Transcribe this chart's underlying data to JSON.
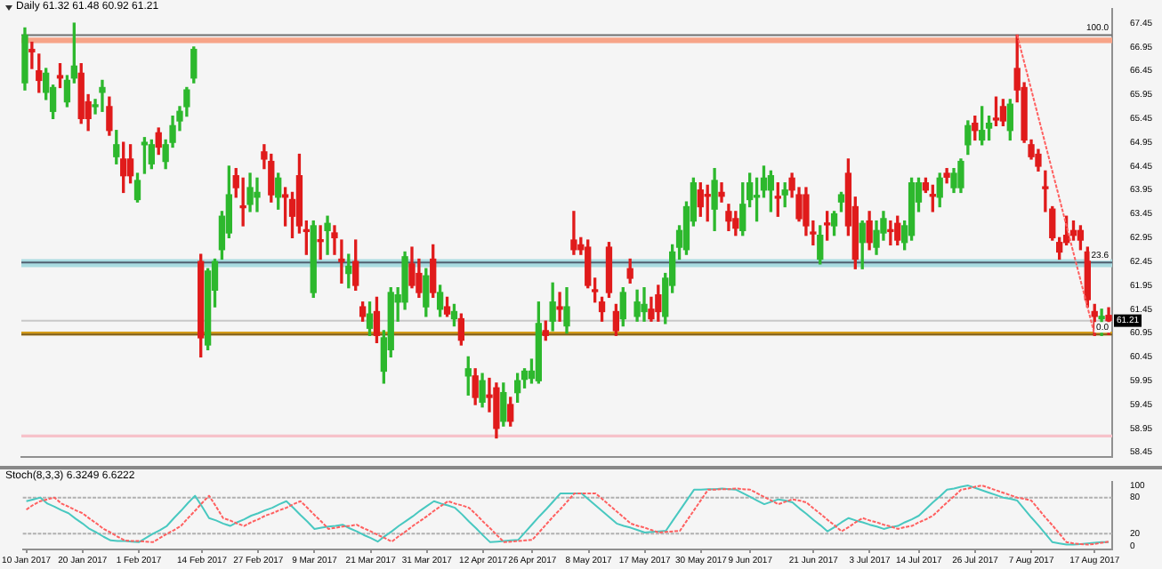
{
  "chart_data": [
    {
      "type": "candlestick",
      "title": "Daily 61.32 61.48 60.92 61.21",
      "ohlc": [
        [
          66.2,
          67.35,
          66.05,
          67.2
        ],
        [
          66.9,
          67.05,
          66.5,
          66.85
        ],
        [
          66.45,
          66.8,
          66.0,
          66.25
        ],
        [
          66.0,
          66.5,
          65.85,
          66.4
        ],
        [
          65.6,
          66.15,
          65.45,
          66.1
        ],
        [
          66.35,
          66.6,
          66.1,
          66.3
        ],
        [
          65.8,
          66.35,
          65.7,
          66.25
        ],
        [
          66.3,
          67.45,
          66.2,
          66.55
        ],
        [
          66.4,
          66.6,
          65.35,
          65.45
        ],
        [
          65.8,
          65.95,
          65.2,
          65.45
        ],
        [
          65.7,
          65.85,
          65.55,
          65.72
        ],
        [
          66.0,
          66.25,
          65.6,
          66.1
        ],
        [
          65.7,
          65.9,
          65.1,
          65.2
        ],
        [
          64.65,
          65.2,
          64.5,
          64.9
        ],
        [
          64.6,
          64.95,
          63.9,
          64.25
        ],
        [
          64.6,
          64.9,
          64.1,
          64.25
        ],
        [
          63.75,
          64.3,
          63.7,
          64.15
        ],
        [
          64.9,
          65.05,
          64.3,
          64.95
        ],
        [
          64.5,
          65.0,
          64.4,
          64.9
        ],
        [
          65.15,
          65.25,
          64.7,
          64.85
        ],
        [
          64.55,
          65.0,
          64.4,
          64.9
        ],
        [
          64.95,
          65.5,
          64.85,
          65.3
        ],
        [
          65.4,
          65.7,
          65.2,
          65.6
        ],
        [
          65.7,
          66.1,
          65.5,
          66.05
        ],
        [
          66.3,
          66.95,
          66.2,
          66.9
        ],
        [
          62.45,
          62.6,
          60.45,
          60.85
        ],
        [
          60.7,
          62.3,
          60.6,
          62.25
        ],
        [
          61.85,
          62.5,
          61.5,
          62.45
        ],
        [
          62.7,
          63.5,
          62.5,
          63.4
        ],
        [
          63.05,
          64.45,
          62.95,
          63.85
        ],
        [
          64.25,
          64.4,
          63.8,
          64.0
        ],
        [
          63.6,
          64.2,
          63.2,
          63.58
        ],
        [
          63.65,
          64.3,
          63.5,
          64.0
        ],
        [
          63.8,
          64.2,
          63.5,
          63.9
        ],
        [
          64.75,
          64.9,
          64.4,
          64.6
        ],
        [
          64.55,
          64.7,
          63.7,
          63.85
        ],
        [
          63.8,
          64.3,
          63.55,
          64.2
        ],
        [
          63.85,
          64.0,
          63.2,
          63.8
        ],
        [
          63.75,
          63.9,
          62.95,
          63.4
        ],
        [
          64.25,
          64.7,
          63.05,
          63.2
        ],
        [
          63.1,
          63.3,
          62.6,
          63.08
        ],
        [
          61.8,
          63.3,
          61.7,
          63.2
        ],
        [
          62.9,
          63.2,
          62.5,
          62.87
        ],
        [
          63.1,
          63.4,
          62.6,
          63.25
        ],
        [
          63.05,
          63.2,
          62.6,
          62.95
        ],
        [
          62.5,
          62.9,
          62.0,
          62.45
        ],
        [
          62.2,
          62.6,
          61.9,
          62.35
        ],
        [
          62.45,
          62.9,
          61.85,
          61.95
        ],
        [
          61.5,
          61.6,
          61.2,
          61.3
        ],
        [
          61.05,
          61.6,
          60.9,
          61.35
        ],
        [
          61.4,
          61.7,
          60.75,
          60.9
        ],
        [
          60.15,
          61.0,
          59.9,
          60.85
        ],
        [
          60.6,
          61.9,
          60.45,
          61.8
        ],
        [
          61.6,
          61.9,
          61.2,
          61.75
        ],
        [
          61.6,
          62.65,
          61.45,
          62.55
        ],
        [
          62.4,
          62.75,
          61.9,
          61.95
        ],
        [
          62.2,
          62.5,
          61.7,
          61.8
        ],
        [
          61.5,
          62.3,
          61.3,
          62.15
        ],
        [
          62.5,
          62.8,
          61.7,
          61.8
        ],
        [
          61.45,
          61.95,
          61.3,
          61.8
        ],
        [
          61.5,
          61.7,
          61.3,
          61.35
        ],
        [
          61.25,
          61.55,
          61.1,
          61.4
        ],
        [
          61.25,
          61.35,
          60.7,
          60.8
        ],
        [
          60.05,
          60.45,
          59.65,
          60.2
        ],
        [
          60.05,
          60.2,
          59.45,
          59.6
        ],
        [
          59.5,
          60.1,
          59.4,
          59.95
        ],
        [
          59.65,
          60.0,
          59.3,
          59.6
        ],
        [
          59.8,
          59.9,
          58.75,
          58.95
        ],
        [
          59.1,
          59.9,
          59.0,
          59.7
        ],
        [
          59.45,
          59.6,
          59.0,
          59.1
        ],
        [
          59.7,
          60.1,
          59.5,
          59.95
        ],
        [
          59.98,
          60.2,
          59.8,
          60.15
        ],
        [
          60.0,
          60.4,
          59.9,
          60.15
        ],
        [
          59.95,
          61.6,
          59.9,
          61.15
        ],
        [
          61.0,
          61.2,
          60.8,
          60.9
        ],
        [
          61.2,
          62.0,
          61.0,
          61.6
        ],
        [
          61.5,
          61.8,
          61.2,
          61.45
        ],
        [
          61.1,
          61.9,
          60.95,
          61.5
        ],
        [
          62.9,
          63.5,
          62.6,
          62.7
        ],
        [
          62.8,
          62.95,
          62.6,
          62.7
        ],
        [
          62.75,
          62.9,
          61.9,
          61.95
        ],
        [
          61.85,
          62.1,
          61.6,
          61.82
        ],
        [
          61.6,
          61.7,
          61.2,
          61.4
        ],
        [
          62.75,
          62.85,
          61.7,
          61.8
        ],
        [
          61.4,
          61.55,
          60.9,
          61.0
        ],
        [
          61.25,
          61.9,
          61.1,
          61.8
        ],
        [
          62.3,
          62.5,
          62.0,
          62.1
        ],
        [
          61.3,
          61.85,
          61.2,
          61.6
        ],
        [
          61.4,
          61.9,
          61.2,
          61.55
        ],
        [
          61.45,
          61.7,
          61.2,
          61.25
        ],
        [
          61.75,
          61.95,
          61.2,
          61.4
        ],
        [
          61.3,
          62.2,
          61.15,
          62.1
        ],
        [
          61.95,
          62.8,
          61.8,
          62.65
        ],
        [
          62.75,
          63.2,
          62.5,
          63.1
        ],
        [
          62.7,
          63.7,
          62.6,
          63.6
        ],
        [
          63.3,
          64.2,
          63.2,
          64.1
        ],
        [
          63.95,
          64.1,
          63.4,
          63.6
        ],
        [
          63.85,
          64.05,
          63.3,
          63.82
        ],
        [
          63.55,
          64.4,
          63.1,
          64.15
        ],
        [
          63.9,
          64.1,
          63.7,
          63.82
        ],
        [
          63.5,
          63.65,
          63.1,
          63.3
        ],
        [
          63.35,
          63.5,
          63.0,
          63.15
        ],
        [
          63.1,
          64.1,
          63.0,
          63.65
        ],
        [
          63.75,
          64.3,
          63.6,
          64.1
        ],
        [
          63.8,
          64.2,
          63.3,
          63.82
        ],
        [
          63.95,
          64.45,
          63.8,
          64.2
        ],
        [
          63.95,
          64.35,
          63.5,
          64.25
        ],
        [
          63.8,
          64.1,
          63.4,
          63.78
        ],
        [
          63.85,
          64.1,
          63.6,
          63.95
        ],
        [
          64.2,
          64.3,
          63.8,
          63.95
        ],
        [
          63.85,
          64.0,
          63.3,
          63.35
        ],
        [
          63.85,
          64.0,
          63.0,
          63.2
        ],
        [
          63.05,
          63.3,
          62.8,
          63.03
        ],
        [
          62.5,
          63.2,
          62.4,
          63.0
        ],
        [
          63.25,
          63.5,
          62.9,
          63.22
        ],
        [
          63.2,
          63.5,
          63.0,
          63.45
        ],
        [
          63.7,
          63.9,
          63.5,
          63.85
        ],
        [
          64.3,
          64.6,
          63.0,
          63.2
        ],
        [
          63.6,
          63.8,
          62.3,
          62.5
        ],
        [
          62.85,
          63.3,
          62.3,
          63.25
        ],
        [
          63.3,
          63.5,
          62.7,
          62.85
        ],
        [
          62.75,
          63.3,
          62.6,
          63.1
        ],
        [
          63.05,
          63.5,
          62.9,
          63.35
        ],
        [
          63.1,
          63.3,
          62.8,
          63.08
        ],
        [
          63.25,
          63.4,
          62.8,
          62.9
        ],
        [
          62.85,
          63.3,
          62.7,
          63.2
        ],
        [
          63.0,
          64.2,
          62.9,
          64.1
        ],
        [
          63.7,
          64.2,
          63.5,
          64.1
        ],
        [
          64.1,
          64.2,
          63.9,
          63.95
        ],
        [
          63.85,
          64.05,
          63.5,
          63.82
        ],
        [
          63.8,
          64.3,
          63.6,
          64.2
        ],
        [
          64.3,
          64.4,
          64.1,
          64.22
        ],
        [
          64.0,
          64.4,
          63.9,
          64.3
        ],
        [
          64.0,
          64.6,
          63.9,
          64.55
        ],
        [
          64.9,
          65.4,
          64.7,
          65.3
        ],
        [
          65.35,
          65.5,
          65.0,
          65.2
        ],
        [
          65.0,
          65.7,
          64.9,
          65.2
        ],
        [
          65.25,
          65.5,
          65.0,
          65.35
        ],
        [
          65.45,
          65.9,
          65.3,
          65.42
        ],
        [
          65.7,
          65.85,
          65.3,
          65.4
        ],
        [
          65.2,
          65.85,
          65.0,
          65.75
        ],
        [
          66.5,
          67.2,
          65.8,
          66.05
        ],
        [
          66.1,
          66.2,
          64.95,
          65.0
        ],
        [
          64.9,
          65.0,
          64.6,
          64.65
        ],
        [
          64.7,
          64.8,
          64.35,
          64.45
        ],
        [
          64.0,
          64.35,
          63.5,
          63.98
        ],
        [
          63.55,
          63.6,
          62.9,
          62.95
        ],
        [
          62.85,
          62.95,
          62.5,
          62.65
        ],
        [
          63.0,
          63.4,
          62.8,
          62.85
        ],
        [
          63.1,
          63.3,
          62.9,
          63.0
        ],
        [
          63.1,
          63.2,
          62.7,
          62.9
        ],
        [
          62.65,
          62.75,
          61.5,
          61.65
        ],
        [
          61.4,
          61.55,
          60.9,
          61.3
        ],
        [
          61.25,
          61.45,
          60.9,
          61.3
        ],
        [
          61.32,
          61.48,
          60.92,
          61.21
        ]
      ],
      "colors": [
        "#2db82d",
        "#e01b1b",
        "#e01b1b",
        "#2db82d",
        "#2db82d",
        "#e01b1b",
        "#2db82d",
        "#2db82d",
        "#e01b1b",
        "#e01b1b",
        "#2db82d",
        "#2db82d",
        "#e01b1b",
        "#2db82d",
        "#e01b1b",
        "#e01b1b",
        "#2db82d",
        "#2db82d",
        "#2db82d",
        "#e01b1b",
        "#2db82d",
        "#2db82d",
        "#2db82d",
        "#2db82d",
        "#2db82d",
        "#e01b1b",
        "#2db82d",
        "#2db82d",
        "#2db82d",
        "#2db82d",
        "#e01b1b",
        "#e01b1b",
        "#2db82d",
        "#2db82d",
        "#e01b1b",
        "#e01b1b",
        "#2db82d",
        "#e01b1b",
        "#e01b1b",
        "#e01b1b",
        "#e01b1b",
        "#2db82d",
        "#e01b1b",
        "#2db82d",
        "#e01b1b",
        "#e01b1b",
        "#2db82d",
        "#e01b1b",
        "#e01b1b",
        "#2db82d",
        "#e01b1b",
        "#2db82d",
        "#2db82d",
        "#2db82d",
        "#2db82d",
        "#e01b1b",
        "#e01b1b",
        "#2db82d",
        "#e01b1b",
        "#2db82d",
        "#e01b1b",
        "#2db82d",
        "#e01b1b",
        "#2db82d",
        "#e01b1b",
        "#2db82d",
        "#e01b1b",
        "#e01b1b",
        "#2db82d",
        "#e01b1b",
        "#2db82d",
        "#2db82d",
        "#2db82d",
        "#2db82d",
        "#e01b1b",
        "#2db82d",
        "#e01b1b",
        "#2db82d",
        "#e01b1b",
        "#e01b1b",
        "#e01b1b",
        "#e01b1b",
        "#e01b1b",
        "#e01b1b",
        "#e01b1b",
        "#2db82d",
        "#e01b1b",
        "#2db82d",
        "#2db82d",
        "#e01b1b",
        "#e01b1b",
        "#2db82d",
        "#2db82d",
        "#2db82d",
        "#2db82d",
        "#2db82d",
        "#e01b1b",
        "#e01b1b",
        "#2db82d",
        "#e01b1b",
        "#e01b1b",
        "#e01b1b",
        "#2db82d",
        "#2db82d",
        "#2db82d",
        "#2db82d",
        "#2db82d",
        "#e01b1b",
        "#2db82d",
        "#e01b1b",
        "#e01b1b",
        "#e01b1b",
        "#e01b1b",
        "#2db82d",
        "#e01b1b",
        "#2db82d",
        "#2db82d",
        "#e01b1b",
        "#e01b1b",
        "#2db82d",
        "#e01b1b",
        "#2db82d",
        "#2db82d",
        "#e01b1b",
        "#e01b1b",
        "#2db82d",
        "#2db82d",
        "#2db82d",
        "#e01b1b",
        "#e01b1b",
        "#2db82d",
        "#e01b1b",
        "#2db82d",
        "#2db82d",
        "#2db82d",
        "#e01b1b",
        "#2db82d",
        "#2db82d",
        "#e01b1b",
        "#e01b1b",
        "#2db82d",
        "#e01b1b",
        "#e01b1b",
        "#e01b1b",
        "#e01b1b",
        "#e01b1b",
        "#e01b1b",
        "#e01b1b",
        "#e01b1b",
        "#e01b1b",
        "#e01b1b",
        "#e01b1b",
        "#e01b1b",
        "#2db82d",
        "#e01b1b"
      ],
      "series": [
        {
          "type": "line",
          "color": "#ff6060",
          "line_style": "dotted",
          "values": [
            null,
            null,
            null,
            null,
            null,
            null,
            null,
            null,
            null,
            null,
            null,
            null,
            null,
            null,
            null,
            null,
            null,
            null,
            null,
            null,
            null,
            null,
            null,
            null,
            null,
            null,
            null,
            null,
            null,
            null,
            null,
            null,
            null,
            null,
            null,
            null,
            null,
            null,
            null,
            null,
            null,
            null,
            null,
            null,
            null,
            null,
            null,
            null,
            null,
            null,
            null,
            null,
            null,
            null,
            null,
            null,
            null,
            null,
            null,
            null,
            null,
            null,
            null,
            null,
            null,
            null,
            null,
            null,
            null,
            null,
            null,
            null,
            null,
            null,
            null,
            null,
            null,
            null,
            null,
            null,
            null,
            null,
            null,
            null,
            null,
            null,
            null,
            null,
            null,
            null,
            null,
            null,
            null,
            null,
            null,
            null,
            null,
            null,
            null,
            null,
            null,
            null,
            null,
            null,
            null,
            null,
            null,
            null,
            null,
            null,
            null,
            null,
            null,
            null,
            null,
            null,
            null,
            null,
            null,
            null,
            null,
            null,
            null,
            null,
            null,
            null,
            null,
            null,
            null,
            null,
            null,
            null,
            null,
            null,
            null,
            null,
            null,
            null,
            null,
            null,
            null,
            67.2,
            null,
            null,
            null,
            null,
            null,
            null,
            null,
            null,
            null,
            null,
            60.92,
            null,
            null
          ]
        }
      ],
      "bands": [
        {
          "axis": "y",
          "from": 67.03,
          "to": 67.15,
          "color": "#f7a488"
        },
        {
          "axis": "y",
          "from": 62.33,
          "to": 62.5,
          "color": "#a9dbe0"
        },
        {
          "axis": "y",
          "from": 60.9,
          "to": 60.98,
          "color": "#d49b1a"
        },
        {
          "axis": "y",
          "from": 58.76,
          "to": 58.82,
          "color": "#f7c2ca"
        }
      ],
      "ref_lines": [
        {
          "axis": "y",
          "value": 67.2,
          "color": "#707070"
        },
        {
          "axis": "y",
          "value": 62.43,
          "color": "#506070"
        },
        {
          "axis": "y",
          "value": 60.92,
          "color": "#806020"
        },
        {
          "axis": "y",
          "value": 61.21,
          "label": "61.21",
          "color": "#c8c8c8"
        }
      ],
      "annotations": [
        {
          "text": "100.0",
          "y": 67.2
        },
        {
          "text": "23.6",
          "y": 62.43
        },
        {
          "text": "0.0",
          "y": 60.92
        }
      ],
      "ylim": [
        58.35,
        67.75
      ],
      "yticks": [
        58.45,
        58.95,
        59.45,
        59.95,
        60.45,
        60.95,
        61.45,
        61.95,
        62.45,
        62.95,
        63.45,
        63.95,
        64.45,
        64.95,
        65.45,
        65.95,
        66.45,
        66.95,
        67.45
      ],
      "tick_labels": "y"
    },
    {
      "type": "line",
      "title": "Stoch(8,3,3) 6.3249 6.6222",
      "categories": [
        "10 Jan 2017",
        null,
        null,
        null,
        null,
        null,
        null,
        null,
        "20 Jan 2017",
        null,
        null,
        null,
        null,
        null,
        null,
        null,
        "1 Feb 2017",
        null,
        null,
        null,
        null,
        null,
        null,
        null,
        null,
        "14 Feb 2017",
        null,
        null,
        null,
        null,
        null,
        null,
        null,
        "27 Feb 2017",
        null,
        null,
        null,
        null,
        null,
        null,
        null,
        "9 Mar 2017",
        null,
        null,
        null,
        null,
        null,
        null,
        null,
        "21 Mar 2017",
        null,
        null,
        null,
        null,
        null,
        null,
        null,
        "31 Mar 2017",
        null,
        null,
        null,
        null,
        null,
        null,
        null,
        "12 Apr 2017",
        null,
        null,
        null,
        null,
        null,
        null,
        "26 Apr 2017",
        null,
        null,
        null,
        null,
        null,
        null,
        null,
        "8 May 2017",
        null,
        null,
        null,
        null,
        null,
        null,
        null,
        "17 May 2017",
        null,
        null,
        null,
        null,
        null,
        null,
        null,
        "30 May 2017",
        null,
        null,
        null,
        null,
        null,
        null,
        "9 Jun 2017",
        null,
        null,
        null,
        null,
        null,
        null,
        null,
        null,
        "21 Jun 2017",
        null,
        null,
        null,
        null,
        null,
        null,
        null,
        "3 Jul 2017",
        null,
        null,
        null,
        null,
        null,
        null,
        "14 Jul 2017",
        null,
        null,
        null,
        null,
        null,
        null,
        null,
        "26 Jul 2017",
        null,
        null,
        null,
        null,
        null,
        null,
        null,
        "7 Aug 2017",
        null,
        null,
        null,
        null,
        null,
        null,
        null,
        null,
        "17 Aug 2017",
        null,
        null
      ],
      "series": [
        {
          "color": "#48c8c0",
          "line_style": "solid",
          "values": [
            74,
            77,
            80,
            70,
            65,
            59,
            54,
            45,
            37,
            28,
            22,
            15,
            9,
            8,
            8,
            7,
            6,
            13,
            20,
            26,
            33,
            46,
            58,
            71,
            83,
            65,
            46,
            42,
            37,
            33,
            39,
            44,
            50,
            54,
            59,
            63,
            69,
            74,
            63,
            51,
            40,
            28,
            30,
            32,
            33,
            35,
            29,
            24,
            18,
            13,
            7,
            16,
            24,
            33,
            41,
            49,
            58,
            66,
            74,
            70,
            67,
            63,
            52,
            40,
            29,
            17,
            6,
            7,
            8,
            9,
            10,
            23,
            36,
            49,
            61,
            74,
            87,
            87,
            87,
            87,
            77,
            67,
            57,
            47,
            37,
            33,
            30,
            26,
            22,
            23,
            24,
            25,
            42,
            59,
            76,
            93,
            93,
            94,
            94,
            95,
            94,
            93,
            87,
            81,
            75,
            69,
            73,
            77,
            75,
            72,
            62,
            53,
            43,
            34,
            24,
            31,
            39,
            46,
            42,
            39,
            35,
            32,
            28,
            31,
            33,
            39,
            44,
            50,
            61,
            72,
            82,
            93,
            95,
            98,
            100,
            96,
            92,
            88,
            84,
            80,
            78,
            75,
            61,
            47,
            34,
            20,
            6,
            4,
            2,
            2,
            3,
            4,
            5,
            6,
            6
          ]
        },
        {
          "color": "#ff6060",
          "line_style": "dotted",
          "values": [
            60,
            68,
            74,
            77,
            80,
            70,
            65,
            59,
            54,
            45,
            37,
            28,
            22,
            15,
            9,
            8,
            8,
            7,
            6,
            13,
            20,
            26,
            33,
            46,
            58,
            71,
            83,
            65,
            46,
            42,
            37,
            33,
            39,
            44,
            50,
            54,
            59,
            63,
            69,
            74,
            63,
            51,
            40,
            28,
            30,
            32,
            33,
            35,
            29,
            24,
            18,
            13,
            7,
            16,
            24,
            33,
            41,
            49,
            58,
            66,
            74,
            70,
            67,
            63,
            52,
            40,
            29,
            17,
            6,
            7,
            8,
            9,
            10,
            23,
            36,
            49,
            61,
            74,
            87,
            87,
            87,
            87,
            77,
            67,
            57,
            47,
            37,
            33,
            30,
            26,
            22,
            23,
            24,
            25,
            42,
            59,
            76,
            93,
            93,
            94,
            94,
            95,
            94,
            93,
            87,
            81,
            75,
            69,
            73,
            77,
            75,
            72,
            62,
            53,
            43,
            34,
            24,
            31,
            39,
            46,
            42,
            39,
            35,
            32,
            28,
            31,
            33,
            39,
            44,
            50,
            61,
            72,
            82,
            93,
            95,
            98,
            100,
            96,
            92,
            88,
            84,
            80,
            78,
            75,
            61,
            47,
            34,
            20,
            6,
            4,
            3,
            2,
            3,
            5,
            7
          ]
        }
      ],
      "ref_lines": [
        {
          "axis": "y",
          "value": 80,
          "color": "#b0b0b0",
          "line_style": "dotted"
        },
        {
          "axis": "y",
          "value": 20,
          "color": "#b0b0b0",
          "line_style": "dotted"
        }
      ],
      "ylim": [
        -6,
        106
      ],
      "yticks": [
        0,
        20,
        80,
        100
      ]
    }
  ]
}
